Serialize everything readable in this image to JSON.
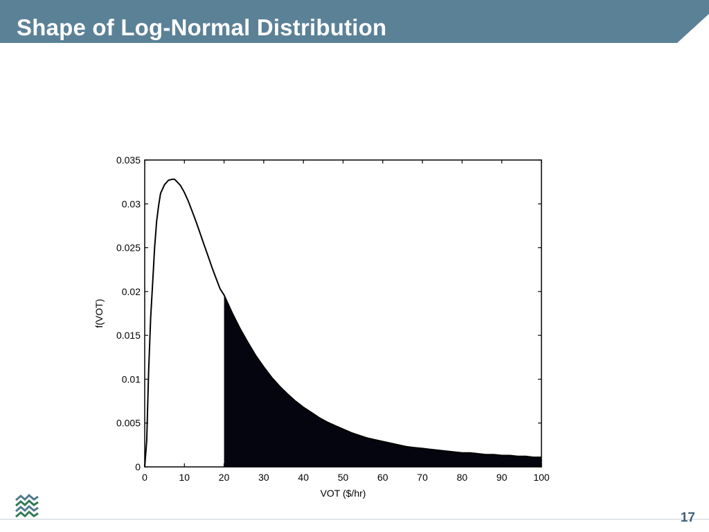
{
  "slide": {
    "title": "Shape of Log-Normal Distribution",
    "page_number": "17"
  },
  "colors": {
    "banner": "#5b8197",
    "fill": "#05050f",
    "page_number": "#3f6074"
  },
  "chart_data": {
    "type": "area",
    "xlabel": "VOT ($/hr)",
    "ylabel": "f(VOT)",
    "xlim": [
      0,
      100
    ],
    "ylim": [
      0,
      0.035
    ],
    "xticks": [
      0,
      10,
      20,
      30,
      40,
      50,
      60,
      70,
      80,
      90,
      100
    ],
    "xtick_labels": [
      "0",
      "10",
      "20",
      "30",
      "40",
      "50",
      "60",
      "70",
      "80",
      "90",
      "100"
    ],
    "yticks": [
      0,
      0.005,
      0.01,
      0.015,
      0.02,
      0.025,
      0.03,
      0.035
    ],
    "ytick_labels": [
      "0",
      "0.005",
      "0.01",
      "0.015",
      "0.02",
      "0.025",
      "0.03",
      "0.035"
    ],
    "grid": false,
    "shaded_from_x": 20,
    "series": [
      {
        "x": [
          0,
          0.5,
          1,
          1.5,
          2,
          2.5,
          3,
          3.5,
          4,
          5,
          6,
          7,
          7.5,
          8,
          9,
          10,
          11,
          12,
          13,
          14,
          15,
          16,
          17,
          18,
          19,
          20,
          22,
          24,
          26,
          28,
          30,
          32,
          34,
          36,
          38,
          40,
          42,
          44,
          46,
          48,
          50,
          52,
          54,
          56,
          58,
          60,
          62,
          64,
          66,
          68,
          70,
          72,
          74,
          76,
          78,
          80,
          82,
          84,
          86,
          88,
          90,
          92,
          94,
          96,
          98,
          100
        ],
        "y": [
          0,
          0.003,
          0.011,
          0.017,
          0.021,
          0.025,
          0.028,
          0.0298,
          0.0312,
          0.0322,
          0.0327,
          0.0328,
          0.0328,
          0.0326,
          0.0321,
          0.0313,
          0.0303,
          0.0291,
          0.0279,
          0.0266,
          0.0253,
          0.024,
          0.0227,
          0.0215,
          0.0203,
          0.0196,
          0.0176,
          0.0158,
          0.0142,
          0.0127,
          0.0114,
          0.0102,
          0.0092,
          0.0083,
          0.0075,
          0.0068,
          0.0062,
          0.0056,
          0.0051,
          0.0047,
          0.0043,
          0.0039,
          0.0036,
          0.0033,
          0.0031,
          0.0029,
          0.0027,
          0.0025,
          0.0023,
          0.0022,
          0.0021,
          0.002,
          0.0019,
          0.0018,
          0.0017,
          0.0016,
          0.0016,
          0.0015,
          0.0014,
          0.0014,
          0.0013,
          0.0013,
          0.0012,
          0.0012,
          0.0011,
          0.0011
        ]
      }
    ]
  }
}
